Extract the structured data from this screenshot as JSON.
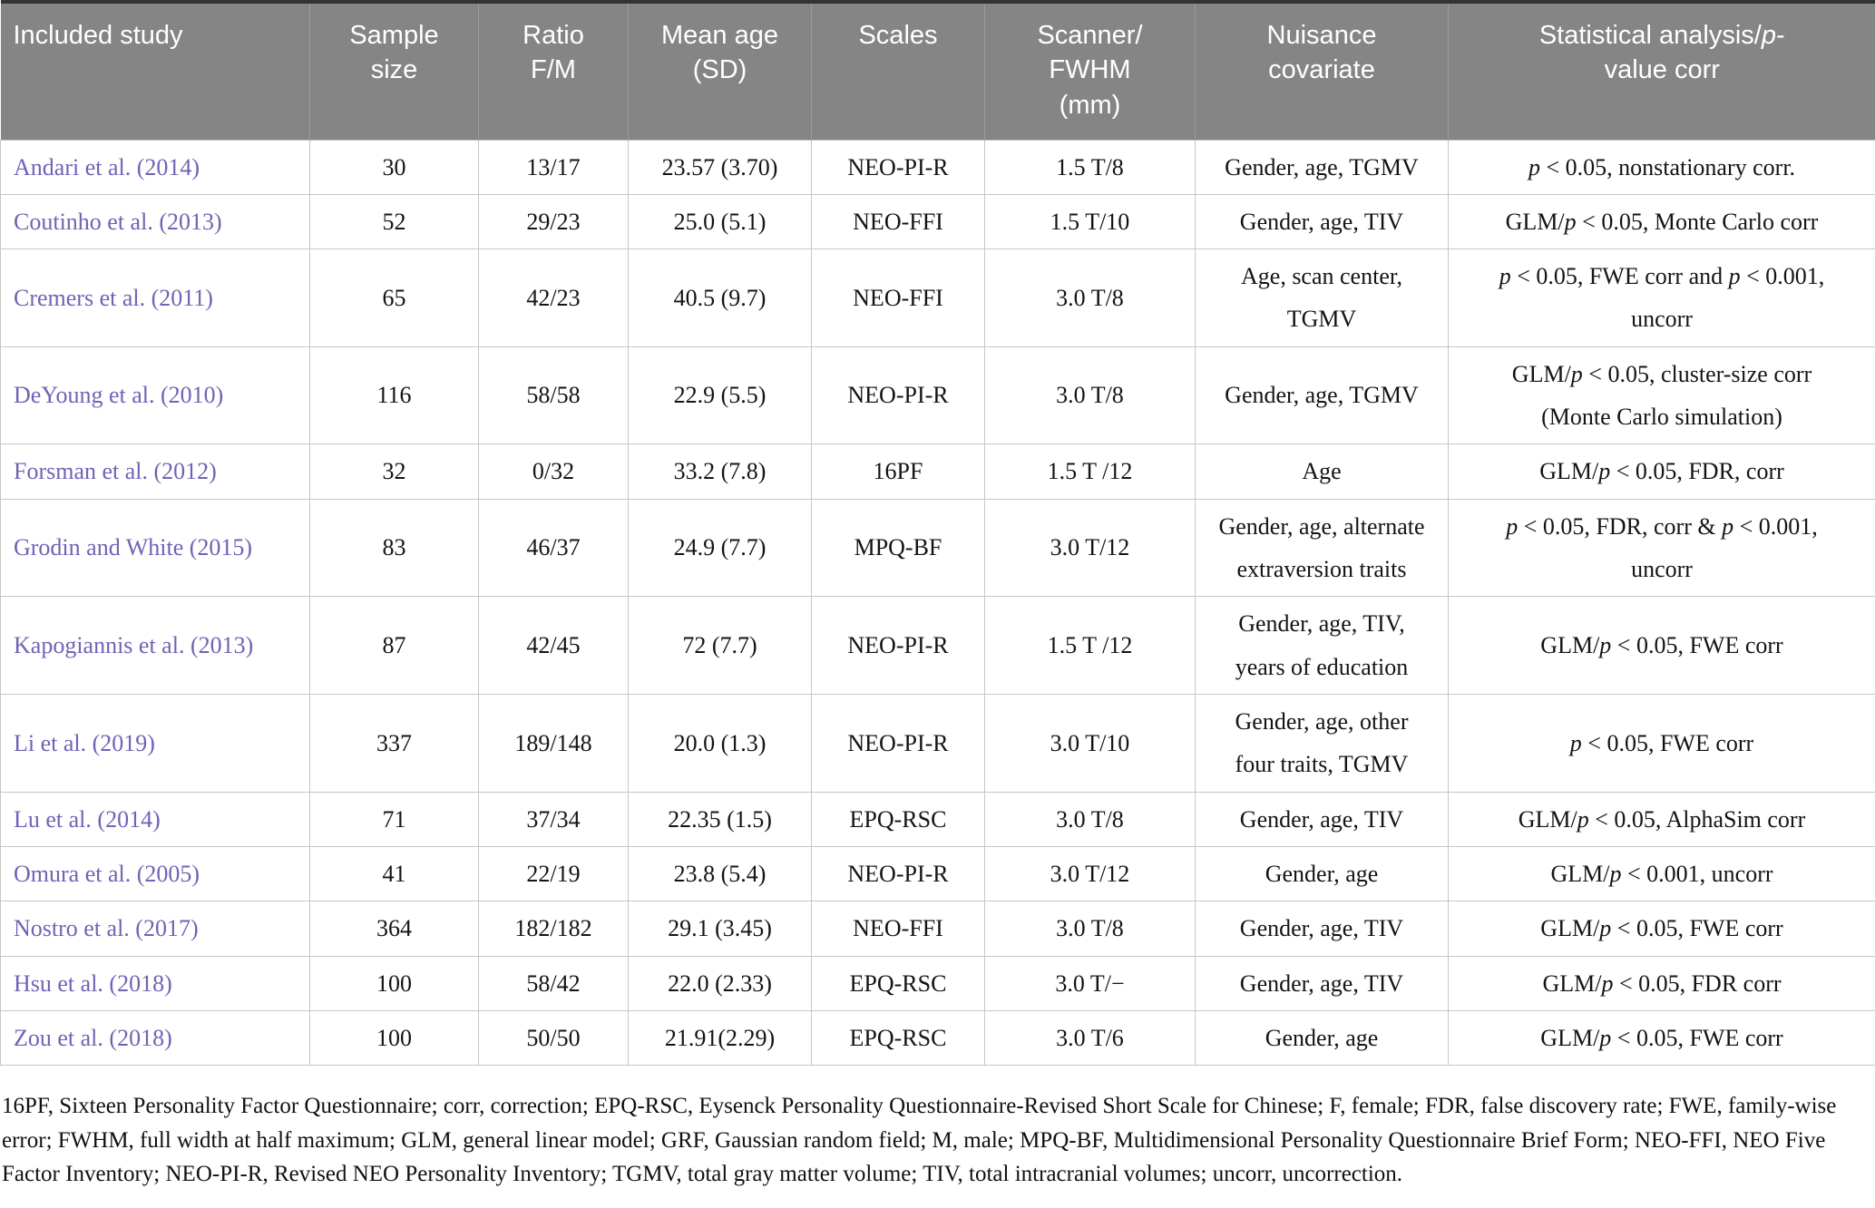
{
  "colors": {
    "header_bg": "#858585",
    "link_text": "#6e64b6",
    "top_border": "#333333"
  },
  "table": {
    "columns": [
      {
        "key": "study",
        "label": "Included study"
      },
      {
        "key": "sample",
        "label": "Sample\nsize"
      },
      {
        "key": "ratio",
        "label": "Ratio\nF/M"
      },
      {
        "key": "age",
        "label": "Mean age\n(SD)"
      },
      {
        "key": "scales",
        "label": "Scales"
      },
      {
        "key": "scanner",
        "label": "Scanner/\nFWHM\n(mm)"
      },
      {
        "key": "nuisance",
        "label": "Nuisance\ncovariate"
      },
      {
        "key": "stats",
        "label": "Statistical analysis/*p*-\nvalue corr"
      }
    ],
    "rows": [
      [
        "Andari et al. (2014)",
        "30",
        "13/17",
        "23.57 (3.70)",
        "NEO-PI-R",
        "1.5 T/8",
        "Gender, age, TGMV",
        "*p* < 0.05, nonstationary corr."
      ],
      [
        "Coutinho et al. (2013)",
        "52",
        "29/23",
        "25.0 (5.1)",
        "NEO-FFI",
        "1.5 T/10",
        "Gender, age, TIV",
        "GLM/*p* < 0.05, Monte Carlo corr"
      ],
      [
        "Cremers et al. (2011)",
        "65",
        "42/23",
        "40.5 (9.7)",
        "NEO-FFI",
        "3.0 T/8",
        "Age, scan center,\nTGMV",
        "*p* < 0.05, FWE corr and *p* < 0.001,\nuncorr"
      ],
      [
        "DeYoung et al. (2010)",
        "116",
        "58/58",
        "22.9 (5.5)",
        "NEO-PI-R",
        "3.0 T/8",
        "Gender, age, TGMV",
        "GLM/*p* < 0.05, cluster-size corr\n(Monte Carlo simulation)"
      ],
      [
        "Forsman et al. (2012)",
        "32",
        "0/32",
        "33.2 (7.8)",
        "16PF",
        "1.5 T /12",
        "Age",
        "GLM/*p* < 0.05, FDR, corr"
      ],
      [
        "Grodin and White (2015)",
        "83",
        "46/37",
        "24.9 (7.7)",
        "MPQ-BF",
        "3.0 T/12",
        "Gender, age, alternate\nextraversion traits",
        "*p* < 0.05, FDR, corr & *p* < 0.001,\nuncorr"
      ],
      [
        "Kapogiannis et al. (2013)",
        "87",
        "42/45",
        "72 (7.7)",
        "NEO-PI-R",
        "1.5 T /12",
        "Gender, age, TIV,\nyears of education",
        "GLM/*p* < 0.05, FWE corr"
      ],
      [
        "Li et al. (2019)",
        "337",
        "189/148",
        "20.0 (1.3)",
        "NEO-PI-R",
        "3.0 T/10",
        "Gender, age, other\nfour traits, TGMV",
        "*p* < 0.05, FWE corr"
      ],
      [
        "Lu et al. (2014)",
        "71",
        "37/34",
        "22.35 (1.5)",
        "EPQ-RSC",
        "3.0 T/8",
        "Gender, age, TIV",
        "GLM/*p* < 0.05, AlphaSim corr"
      ],
      [
        "Omura et al. (2005)",
        "41",
        "22/19",
        "23.8 (5.4)",
        "NEO-PI-R",
        "3.0 T/12",
        "Gender, age",
        "GLM/*p* < 0.001, uncorr"
      ],
      [
        "Nostro et al. (2017)",
        "364",
        "182/182",
        "29.1 (3.45)",
        "NEO-FFI",
        "3.0 T/8",
        "Gender, age, TIV",
        "GLM/*p* < 0.05, FWE corr"
      ],
      [
        "Hsu et al. (2018)",
        "100",
        "58/42",
        "22.0 (2.33)",
        "EPQ-RSC",
        "3.0 T/−",
        "Gender, age, TIV",
        "GLM/*p* < 0.05, FDR corr"
      ],
      [
        "Zou et al. (2018)",
        "100",
        "50/50",
        "21.91(2.29)",
        "EPQ-RSC",
        "3.0 T/6",
        "Gender, age",
        "GLM/*p* < 0.05, FWE corr"
      ]
    ],
    "footnote": "16PF, Sixteen Personality Factor Questionnaire; corr, correction; EPQ-RSC, Eysenck Personality Questionnaire-Revised Short Scale for Chinese; F, female; FDR, false discovery rate; FWE, family-wise error; FWHM, full width at half maximum; GLM, general linear model; GRF, Gaussian random field; M, male; MPQ-BF, Multidimensional Personality Questionnaire Brief Form; NEO-FFI, NEO Five Factor Inventory; NEO-PI-R, Revised NEO Personality Inventory; TGMV, total gray matter volume; TIV, total intracranial volumes; uncorr, uncorrection."
  }
}
